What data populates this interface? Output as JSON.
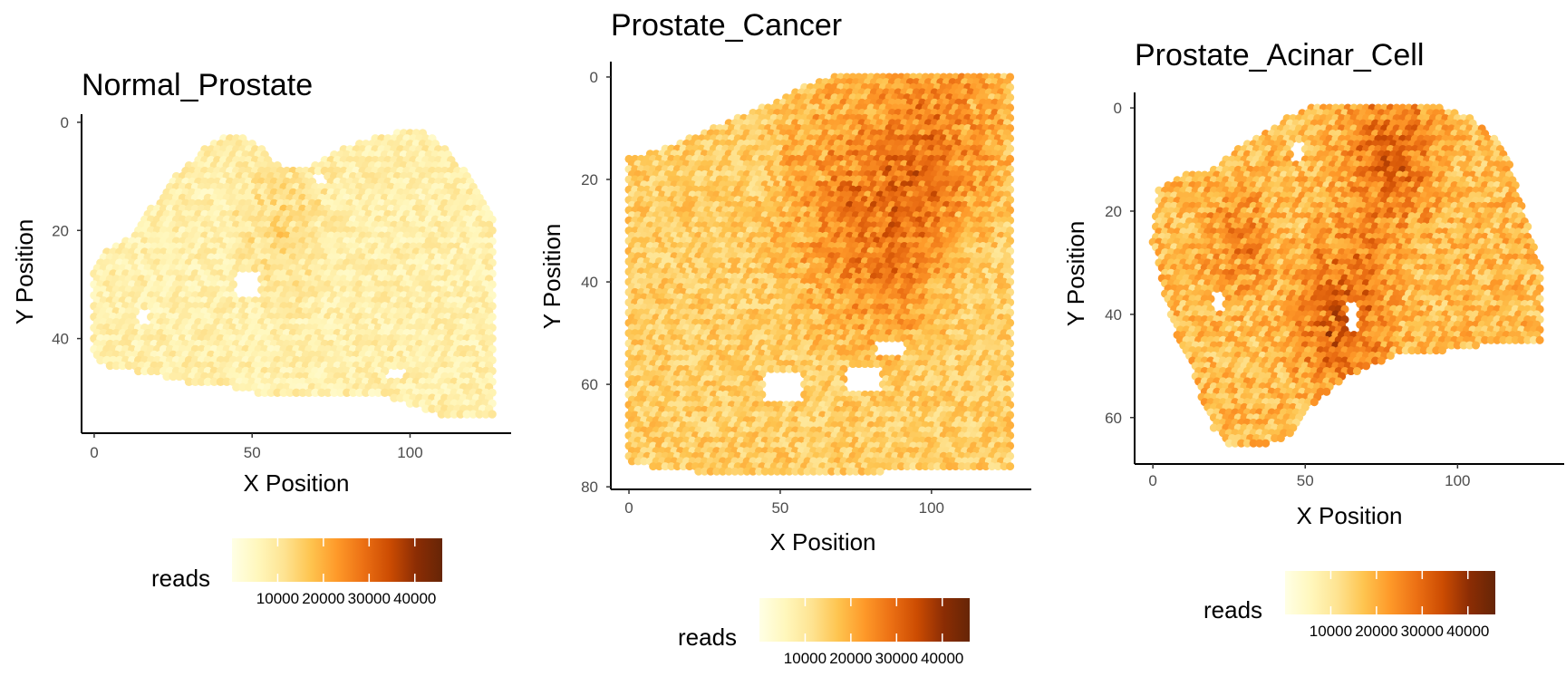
{
  "figure_title": "",
  "chart_data": [
    {
      "type": "heatmap",
      "title": "Normal_Prostate",
      "xlabel": "X Position",
      "ylabel": "Y Position",
      "xlim": [
        -4,
        132
      ],
      "ylim": [
        57.5,
        -1.5
      ],
      "y_reversed": true,
      "xticks": [
        0,
        50,
        100
      ],
      "yticks": [
        0,
        20,
        40
      ],
      "grid": false,
      "legend": {
        "title": "reads",
        "placement": "bottom",
        "ticks": [
          10000,
          20000,
          30000,
          40000
        ],
        "range": [
          0,
          46000
        ]
      },
      "summary": {
        "x_extent": [
          0,
          127
        ],
        "y_extent": [
          2,
          56
        ],
        "intensity_level": "low"
      }
    },
    {
      "type": "heatmap",
      "title": "Prostate_Cancer",
      "xlabel": "X Position",
      "ylabel": "Y Position",
      "xlim": [
        -6,
        133
      ],
      "ylim": [
        80.5,
        -3
      ],
      "y_reversed": true,
      "xticks": [
        0,
        50,
        100
      ],
      "yticks": [
        0,
        20,
        40,
        60,
        80
      ],
      "grid": false,
      "legend": {
        "title": "reads",
        "placement": "bottom",
        "ticks": [
          10000,
          20000,
          30000,
          40000
        ],
        "range": [
          0,
          46000
        ]
      },
      "summary": {
        "x_extent": [
          0,
          127
        ],
        "y_extent": [
          0,
          77
        ],
        "intensity_level": "medium"
      }
    },
    {
      "type": "heatmap",
      "title": "Prostate_Acinar_Cell",
      "xlabel": "X Position",
      "ylabel": "Y Position",
      "xlim": [
        -6,
        135
      ],
      "ylim": [
        69,
        -3
      ],
      "y_reversed": true,
      "xticks": [
        0,
        50,
        100
      ],
      "yticks": [
        0,
        20,
        40,
        60
      ],
      "grid": false,
      "legend": {
        "title": "reads",
        "placement": "bottom",
        "ticks": [
          10000,
          20000,
          30000,
          40000
        ],
        "range": [
          0,
          46000
        ]
      },
      "summary": {
        "x_extent": [
          0,
          127
        ],
        "y_extent": [
          0,
          66
        ],
        "intensity_level": "high"
      }
    }
  ],
  "colors": {
    "palette": [
      "#ffffe5",
      "#fff7bc",
      "#fee391",
      "#fec44f",
      "#fe9929",
      "#ec7014",
      "#cc4c02",
      "#8c2d04",
      "#662506"
    ],
    "axis": "#000000",
    "tick_text": "#4d4d4d"
  },
  "legend_tick_text": [
    "10000",
    "20000",
    "30000",
    "40000"
  ]
}
